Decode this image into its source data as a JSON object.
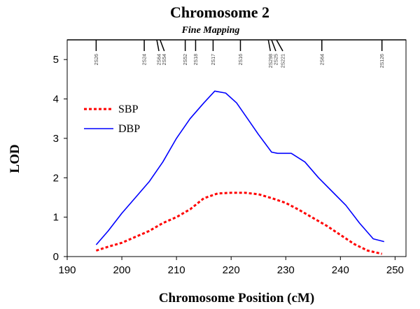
{
  "chart_data": {
    "type": "line",
    "title": "Chromosome 2",
    "subtitle": "Fine Mapping",
    "xlabel": "Chromosome Position (cM)",
    "ylabel": "LOD",
    "xlim": [
      190,
      252
    ],
    "ylim": [
      0,
      5.5
    ],
    "xticks": [
      190,
      200,
      210,
      220,
      230,
      240,
      250
    ],
    "yticks": [
      0,
      1,
      2,
      3,
      4,
      5
    ],
    "grid": false,
    "legend_position": "upper-left",
    "markers": [
      {
        "name": "2S26",
        "x": 195.3,
        "group": 0
      },
      {
        "name": "2S24",
        "x": 204.1,
        "group": 0
      },
      {
        "name": "2S64",
        "x": 206.4,
        "group": 1
      },
      {
        "name": "2S54",
        "x": 207.0,
        "group": 2
      },
      {
        "name": "2S52",
        "x": 211.6,
        "group": 0
      },
      {
        "name": "2S18",
        "x": 213.5,
        "group": 0
      },
      {
        "name": "2S17",
        "x": 216.7,
        "group": 0
      },
      {
        "name": "2S16",
        "x": 221.7,
        "group": 0
      },
      {
        "name": "2S298",
        "x": 226.8,
        "group": 1
      },
      {
        "name": "2S25",
        "x": 227.4,
        "group": 2
      },
      {
        "name": "2S221",
        "x": 228.3,
        "group": 3
      },
      {
        "name": "2S64",
        "x": 236.6,
        "group": 0
      },
      {
        "name": "2S126",
        "x": 247.6,
        "group": 0
      }
    ],
    "series": [
      {
        "name": "SBP",
        "color": "#ff0000",
        "style": "dotted",
        "x": [
          195.3,
          197.5,
          200.0,
          202.5,
          205.0,
          207.5,
          210.0,
          212.5,
          215.0,
          217.5,
          220.0,
          222.5,
          225.0,
          227.5,
          230.0,
          232.5,
          235.0,
          237.5,
          240.0,
          242.5,
          245.0,
          247.6
        ],
        "y": [
          0.15,
          0.25,
          0.35,
          0.5,
          0.65,
          0.85,
          1.0,
          1.2,
          1.48,
          1.6,
          1.62,
          1.62,
          1.58,
          1.48,
          1.36,
          1.18,
          0.98,
          0.78,
          0.55,
          0.32,
          0.15,
          0.07
        ]
      },
      {
        "name": "DBP",
        "color": "#0000ff",
        "style": "solid",
        "x": [
          195.3,
          197.5,
          200.0,
          202.5,
          205.0,
          207.5,
          210.0,
          212.5,
          215.0,
          217.0,
          219.0,
          221.0,
          223.0,
          225.0,
          227.4,
          228.5,
          231.0,
          233.5,
          236.0,
          238.5,
          241.0,
          243.5,
          246.0,
          248.0
        ],
        "y": [
          0.3,
          0.65,
          1.1,
          1.5,
          1.9,
          2.4,
          3.0,
          3.5,
          3.9,
          4.2,
          4.15,
          3.9,
          3.5,
          3.1,
          2.65,
          2.62,
          2.62,
          2.4,
          2.0,
          1.65,
          1.3,
          0.85,
          0.45,
          0.38
        ]
      }
    ]
  }
}
